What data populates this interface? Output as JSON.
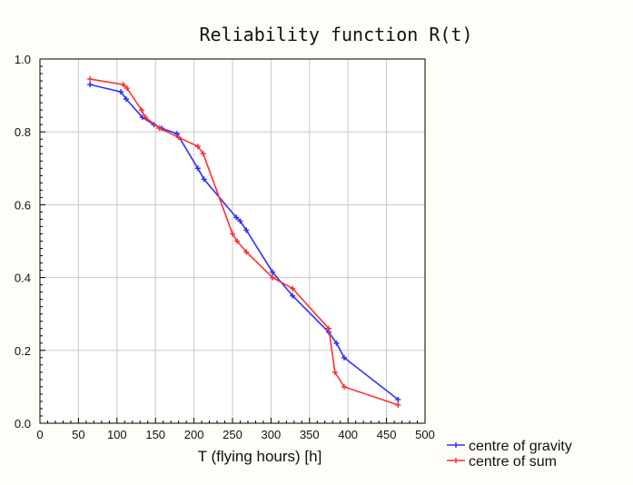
{
  "chart_data": {
    "type": "line",
    "title": "Reliability function R(t)",
    "xlabel": "T (flying hours) [h]",
    "ylabel": "",
    "xlim": [
      0,
      500
    ],
    "ylim": [
      0.0,
      1.0
    ],
    "xticks": [
      "0",
      "50",
      "100",
      "150",
      "200",
      "250",
      "300",
      "350",
      "400",
      "450",
      "500"
    ],
    "yticks": [
      "0.0",
      "0.2",
      "0.4",
      "0.6",
      "0.8",
      "1.0"
    ],
    "grid": true,
    "legend_position": "bottom-right outside",
    "series": [
      {
        "name": "centre of gravity",
        "color": "#3030ff",
        "x": [
          65,
          105,
          112,
          133,
          148,
          158,
          178,
          205,
          213,
          255,
          260,
          268,
          302,
          328,
          375,
          385,
          395,
          465
        ],
        "y": [
          0.93,
          0.91,
          0.89,
          0.84,
          0.82,
          0.81,
          0.795,
          0.7,
          0.67,
          0.565,
          0.555,
          0.53,
          0.415,
          0.35,
          0.25,
          0.22,
          0.18,
          0.065
        ]
      },
      {
        "name": "centre of sum",
        "color": "#ff3030",
        "x": [
          65,
          108,
          113,
          132,
          137,
          155,
          180,
          205,
          212,
          250,
          256,
          268,
          302,
          328,
          375,
          383,
          395,
          465
        ],
        "y": [
          0.945,
          0.93,
          0.92,
          0.86,
          0.84,
          0.81,
          0.785,
          0.76,
          0.74,
          0.52,
          0.5,
          0.47,
          0.4,
          0.37,
          0.26,
          0.14,
          0.1,
          0.05
        ]
      }
    ]
  }
}
